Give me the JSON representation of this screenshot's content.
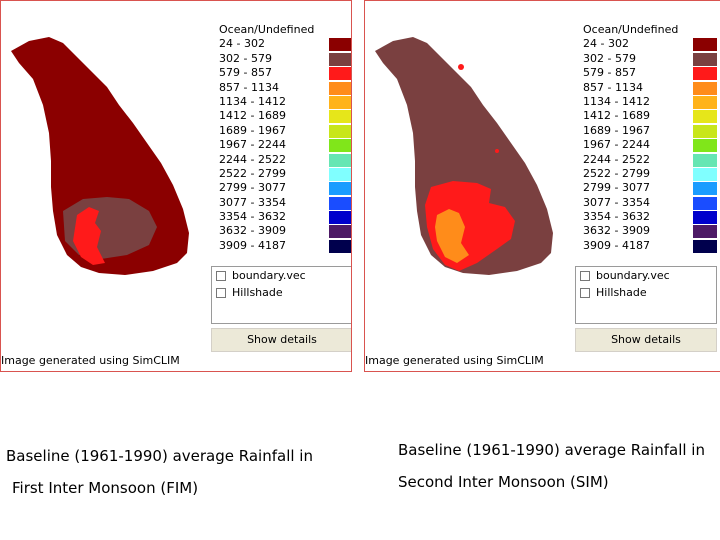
{
  "legend": [
    {
      "label": "Ocean/Undefined",
      "color": "#ffffff"
    },
    {
      "label": "24 - 302",
      "color": "#8b0000"
    },
    {
      "label": "302 - 579",
      "color": "#7a4040"
    },
    {
      "label": "579 - 857",
      "color": "#ff1a1a"
    },
    {
      "label": "857 - 1134",
      "color": "#ff8c1a"
    },
    {
      "label": "1134 - 1412",
      "color": "#ffb31a"
    },
    {
      "label": "1412 - 1689",
      "color": "#e6e61a"
    },
    {
      "label": "1689 - 1967",
      "color": "#c8e61a"
    },
    {
      "label": "1967 - 2244",
      "color": "#80e61a"
    },
    {
      "label": "2244 - 2522",
      "color": "#66e6b3"
    },
    {
      "label": "2522 - 2799",
      "color": "#80ffff"
    },
    {
      "label": "2799 - 3077",
      "color": "#1a9cff"
    },
    {
      "label": "3077 - 3354",
      "color": "#1a4dff"
    },
    {
      "label": "3354 - 3632",
      "color": "#0000cc"
    },
    {
      "label": "3632 - 3909",
      "color": "#4d1a66"
    },
    {
      "label": "3909 - 4187",
      "color": "#00004d"
    }
  ],
  "layers": [
    {
      "label": "boundary.vec"
    },
    {
      "label": "Hillshade"
    }
  ],
  "show_details_label": "Show details",
  "credit": "Image generated using SimCLIM",
  "colors": {
    "dark_red": "#8b0000",
    "brown": "#7a4040",
    "red": "#ff1a1a",
    "orange": "#ff8c1a"
  },
  "captions": {
    "left_line1": "Baseline (1961-1990) average Rainfall in",
    "left_line2": "First Inter Monsoon (FIM)",
    "right_line1": "Baseline (1961-1990) average Rainfall in",
    "right_line2": "Second Inter Monsoon (SIM)"
  }
}
